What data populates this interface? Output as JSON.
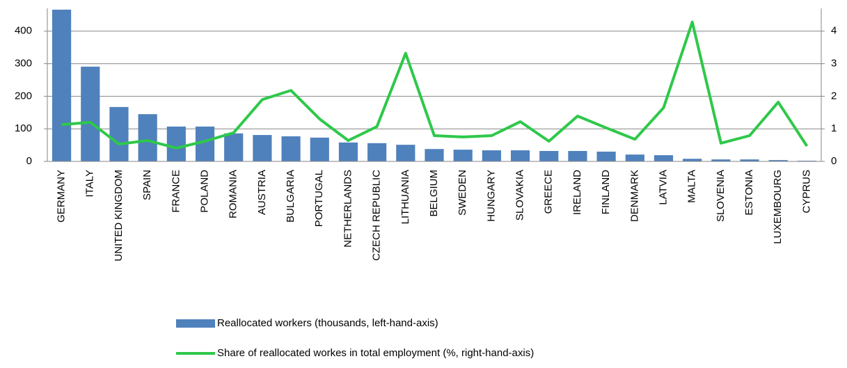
{
  "chart_data": {
    "type": "bar_line",
    "categories": [
      "GERMANY",
      "ITALY",
      "UNITED KINGDOM",
      "SPAIN",
      "FRANCE",
      "POLAND",
      "ROMANIA",
      "AUSTRIA",
      "BULGARIA",
      "PORTUGAL",
      "NETHERLANDS",
      "CZECH REPUBLIC",
      "LITHUANIA",
      "BELGIUM",
      "SWEDEN",
      "HUNGARY",
      "SLOVAKIA",
      "GREECE",
      "IRELAND",
      "FINLAND",
      "DENMARK",
      "LATVIA",
      "MALTA",
      "SLOVENIA",
      "ESTONIA",
      "LUXEMBOURG",
      "CYPRUS"
    ],
    "series": [
      {
        "name": "Reallocated workers (thousands, left-hand-axis)",
        "type": "bar",
        "color": "#4f81bd",
        "values": [
          466,
          291,
          167,
          145,
          107,
          107,
          86,
          81,
          77,
          73,
          58,
          56,
          51,
          38,
          36,
          34,
          34,
          32,
          32,
          30,
          21,
          19,
          8,
          6,
          6,
          4,
          2
        ]
      },
      {
        "name": "Share of reallocated workes in total employment (%, right-hand-axis)",
        "type": "line",
        "axis": "y2",
        "color": "#2ec84a",
        "values": [
          1.13,
          1.2,
          0.53,
          0.64,
          0.41,
          0.62,
          0.88,
          1.9,
          2.18,
          1.3,
          0.64,
          1.07,
          3.32,
          0.79,
          0.75,
          0.79,
          1.22,
          0.62,
          1.39,
          1.03,
          0.68,
          1.65,
          4.28,
          0.56,
          0.79,
          1.82,
          0.47
        ]
      }
    ],
    "ylim": [
      0,
      470
    ],
    "yticks": [
      0,
      100,
      200,
      300,
      400
    ],
    "y2lim": [
      0,
      4.7
    ],
    "y2ticks": [
      0,
      1,
      2,
      3,
      4
    ],
    "grid": true
  }
}
